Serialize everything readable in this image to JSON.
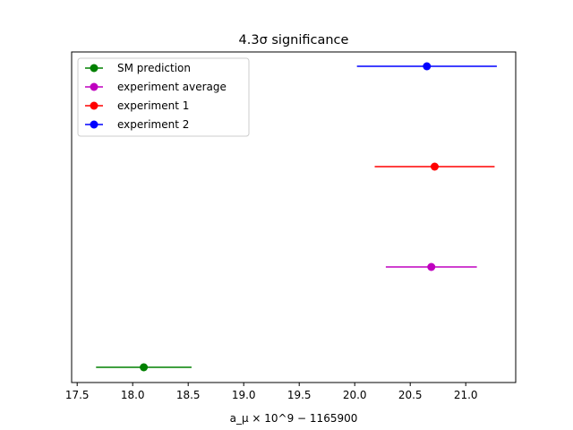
{
  "chart_data": {
    "type": "errorbar",
    "title": "4.3σ significance",
    "xlabel": "a_μ × 10^9 − 1165900",
    "xlim": [
      17.45,
      21.45
    ],
    "xticks": [
      "17.5",
      "18.0",
      "18.5",
      "19.0",
      "19.5",
      "20.0",
      "20.5",
      "21.0"
    ],
    "grid": false,
    "legend_position": "upper-left",
    "series": [
      {
        "name": "SM prediction",
        "x": 18.1,
        "xerr": 0.43,
        "row": 0,
        "color": "#008000"
      },
      {
        "name": "experiment average",
        "x": 20.69,
        "xerr": 0.41,
        "row": 1,
        "color": "#bf00bf"
      },
      {
        "name": "experiment 1",
        "x": 20.72,
        "xerr": 0.54,
        "row": 2,
        "color": "#ff0000"
      },
      {
        "name": "experiment 2",
        "x": 20.65,
        "xerr": 0.63,
        "row": 3,
        "color": "#0000ff"
      }
    ]
  }
}
